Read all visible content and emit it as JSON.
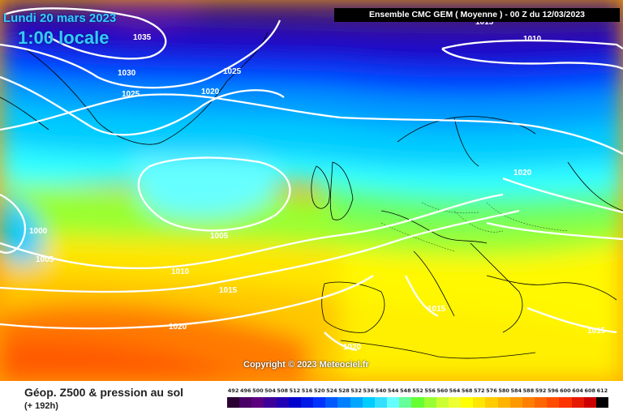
{
  "header": {
    "date": "Lundi 20 mars 2023",
    "time": "1:00 locale",
    "model": "Ensemble CMC GEM  ( Moyenne )  -  00 Z du 12/03/2023"
  },
  "map": {
    "isobar_labels": [
      "1035",
      "1030",
      "1025",
      "1025",
      "1020",
      "1020",
      "1010",
      "1010",
      "1005",
      "1000",
      "1005",
      "1010",
      "1015",
      "1020",
      "1015",
      "1020",
      "1015",
      "1015"
    ],
    "isobar_color": "#ffffff"
  },
  "copyright": "Copyright © 2023 Meteociel.fr",
  "footer": {
    "title": "Géop. Z500 & pression au sol",
    "subtitle": "(+ 192h)"
  },
  "scale": {
    "labels": [
      "492",
      "496",
      "500",
      "504",
      "508",
      "512",
      "516",
      "520",
      "524",
      "528",
      "532",
      "536",
      "540",
      "544",
      "548",
      "552",
      "556",
      "560",
      "564",
      "568",
      "572",
      "576",
      "580",
      "584",
      "588",
      "592",
      "596",
      "600",
      "604",
      "608",
      "612"
    ],
    "colors": [
      "#2b0033",
      "#4a0066",
      "#5c0080",
      "#3d0099",
      "#2200b3",
      "#0000cc",
      "#0019e6",
      "#0033ff",
      "#0059ff",
      "#0080ff",
      "#00a6ff",
      "#00ccff",
      "#33e0ff",
      "#66ffff",
      "#66ff99",
      "#66ff33",
      "#99ff33",
      "#ccff33",
      "#eeff33",
      "#ffff00",
      "#ffe600",
      "#ffcc00",
      "#ffb300",
      "#ff9900",
      "#ff8000",
      "#ff6600",
      "#ff4d00",
      "#ff3300",
      "#e61a00",
      "#cc0000",
      "#000000"
    ]
  }
}
